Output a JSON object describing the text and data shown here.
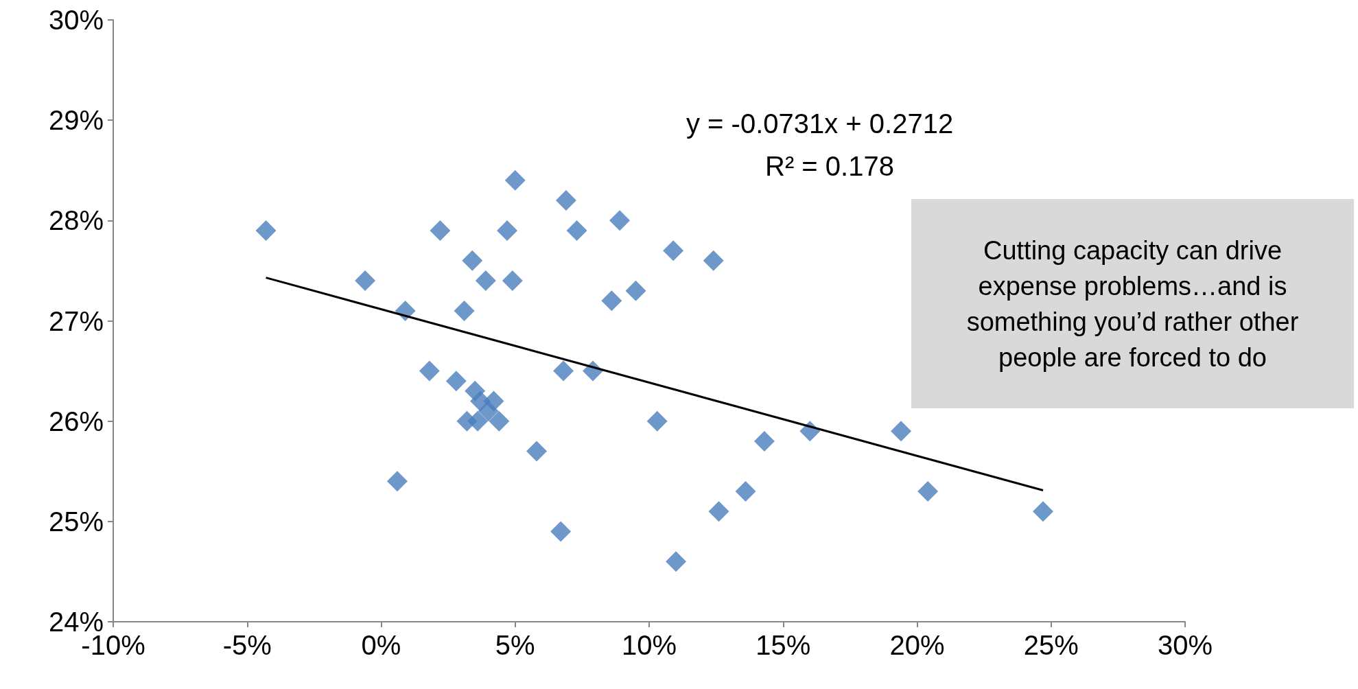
{
  "chart_data": {
    "type": "scatter",
    "marker": "diamond",
    "xlim": [
      -10,
      30
    ],
    "ylim": [
      24,
      30
    ],
    "xticks": [
      {
        "value": -10,
        "label": "-10%"
      },
      {
        "value": -5,
        "label": "-5%"
      },
      {
        "value": 0,
        "label": "0%"
      },
      {
        "value": 5,
        "label": "5%"
      },
      {
        "value": 10,
        "label": "10%"
      },
      {
        "value": 15,
        "label": "15%"
      },
      {
        "value": 20,
        "label": "20%"
      },
      {
        "value": 25,
        "label": "25%"
      },
      {
        "value": 30,
        "label": "30%"
      }
    ],
    "yticks": [
      {
        "value": 24,
        "label": "24%"
      },
      {
        "value": 25,
        "label": "25%"
      },
      {
        "value": 26,
        "label": "26%"
      },
      {
        "value": 27,
        "label": "27%"
      },
      {
        "value": 28,
        "label": "28%"
      },
      {
        "value": 29,
        "label": "29%"
      },
      {
        "value": 30,
        "label": "30%"
      }
    ],
    "series": [
      {
        "color": "#4a7ebb",
        "x": [
          -4.3,
          -0.6,
          0.9,
          2.2,
          3.4,
          3.9,
          3.1,
          4.7,
          4.9,
          5.0,
          6.9,
          7.3,
          8.9,
          8.6,
          9.5,
          10.9,
          12.4,
          1.8,
          2.8,
          3.5,
          3.7,
          4.2,
          4.0,
          3.2,
          3.6,
          4.4,
          5.8,
          6.8,
          7.9,
          0.6,
          6.7,
          10.3,
          11.0,
          12.6,
          13.6,
          14.3,
          16.0,
          19.4,
          20.4,
          24.7
        ],
        "values": [
          27.9,
          27.4,
          27.1,
          27.9,
          27.6,
          27.4,
          27.1,
          27.9,
          27.4,
          28.4,
          28.2,
          27.9,
          28.0,
          27.2,
          27.3,
          27.7,
          27.6,
          26.5,
          26.4,
          26.3,
          26.2,
          26.2,
          26.1,
          26.0,
          26.0,
          26.0,
          25.7,
          26.5,
          26.5,
          25.4,
          24.9,
          26.0,
          24.6,
          25.1,
          25.3,
          25.8,
          25.9,
          25.9,
          25.3,
          25.1
        ]
      },
      {
        "type": "line",
        "marker": "none",
        "color": "#000000",
        "x": [
          -4.3,
          24.7
        ],
        "values": [
          27.43,
          25.31
        ]
      }
    ],
    "annotations": [
      "y = -0.0731x + 0.2712",
      "R² = 0.178",
      "Cutting capacity can drive expense problems…and is something you’d rather other people are forced to do"
    ]
  }
}
